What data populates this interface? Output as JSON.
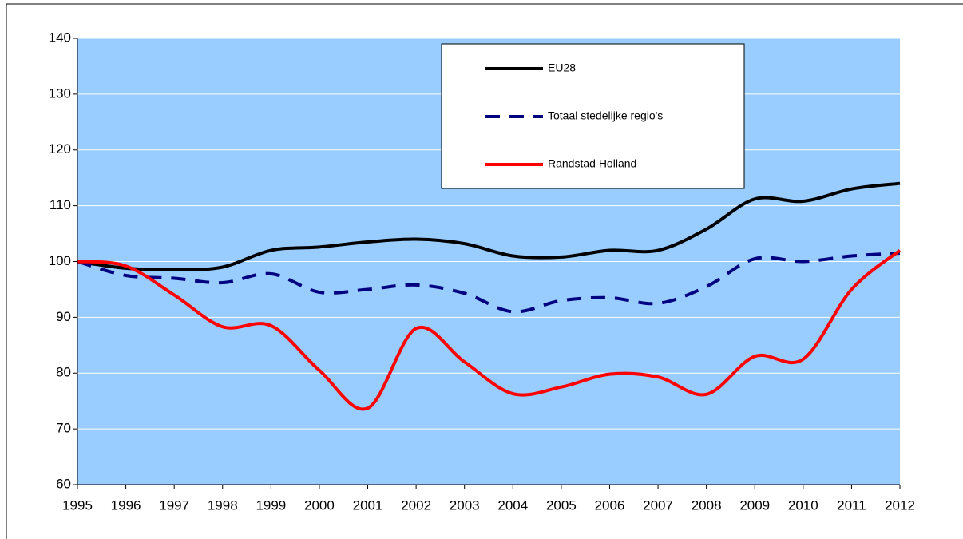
{
  "chart_data": {
    "type": "line",
    "x": [
      1995,
      1996,
      1997,
      1998,
      1999,
      2000,
      2001,
      2002,
      2003,
      2004,
      2005,
      2006,
      2007,
      2008,
      2009,
      2010,
      2011,
      2012
    ],
    "xlim": [
      1995,
      2012
    ],
    "xticks": [
      1995,
      1996,
      1997,
      1998,
      1999,
      2000,
      2001,
      2002,
      2003,
      2004,
      2005,
      2006,
      2007,
      2008,
      2009,
      2010,
      2011,
      2012
    ],
    "ylim": [
      60,
      140
    ],
    "yticks": [
      60,
      70,
      80,
      90,
      100,
      110,
      120,
      130,
      140
    ],
    "grid": true,
    "series": [
      {
        "name": "EU28",
        "color": "#000000",
        "dash": false,
        "values": [
          100,
          98.8,
          98.5,
          99,
          102,
          102.6,
          103.5,
          104,
          103.2,
          101,
          100.8,
          102,
          102,
          105.8,
          111.2,
          110.8,
          113,
          114
        ]
      },
      {
        "name": "Totaal stedelijke regio's",
        "color": "#000080",
        "dash": true,
        "values": [
          100,
          97.5,
          97,
          96.2,
          97.8,
          94.5,
          95,
          95.8,
          94.3,
          91,
          93,
          93.5,
          92.5,
          95.5,
          100.5,
          100,
          101,
          101.5
        ]
      },
      {
        "name": "Randstad Holland",
        "color": "#ff0000",
        "dash": false,
        "values": [
          100,
          99.2,
          94,
          88.3,
          88.5,
          80.5,
          73.7,
          88,
          82,
          76.3,
          77.5,
          79.8,
          79.3,
          76.2,
          83,
          82.5,
          95,
          102
        ]
      }
    ]
  }
}
